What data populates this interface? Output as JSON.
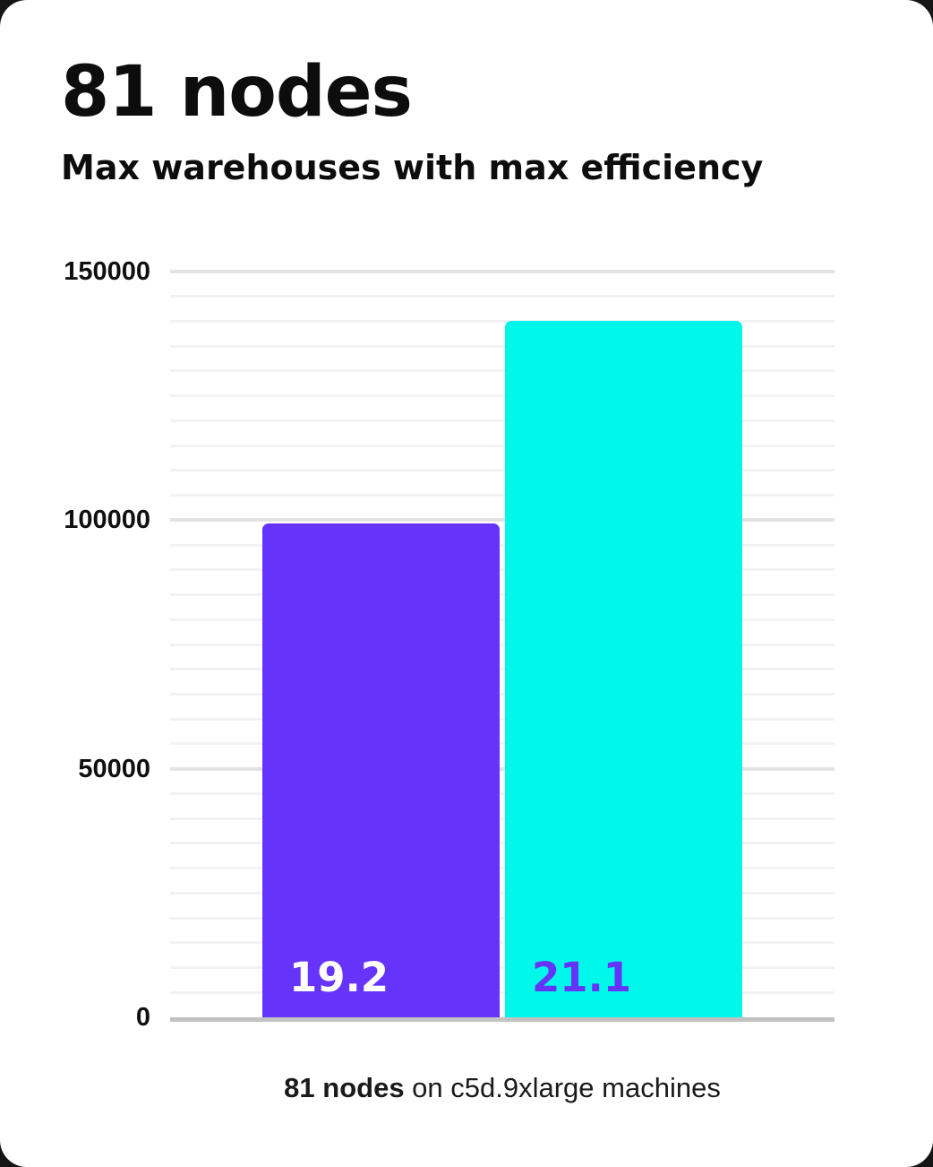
{
  "header": {
    "title": "81 nodes",
    "subtitle": "Max warehouses with max efficiency"
  },
  "chart_data": {
    "type": "bar",
    "title": "81 nodes",
    "subtitle": "Max warehouses with max efficiency",
    "bars": [
      {
        "label": "19.2",
        "value": 99400,
        "color": "#6633FA",
        "label_color": "#ffffff"
      },
      {
        "label": "21.1",
        "value": 140000,
        "color": "#00F8EA",
        "label_color": "#6633FA"
      }
    ],
    "ylim": [
      0,
      150000
    ],
    "yticks": [
      0,
      50000,
      100000,
      150000
    ],
    "ytick_labels": [
      "0",
      "50000",
      "100000",
      "150000"
    ],
    "minor_grid_step": 5000,
    "grid": true,
    "legend": false,
    "caption": "81 nodes on c5d.9xlarge machines"
  },
  "caption": {
    "bold": "81 nodes",
    "rest": " on c5d.9xlarge machines"
  },
  "colors": {
    "bar_purple": "#6633FA",
    "bar_cyan": "#00F8EA",
    "axis_line": "#C2C2C2",
    "grid_minor": "#F2F2F2",
    "grid_major": "#E3E3E3",
    "text": "#0D0D0D"
  }
}
